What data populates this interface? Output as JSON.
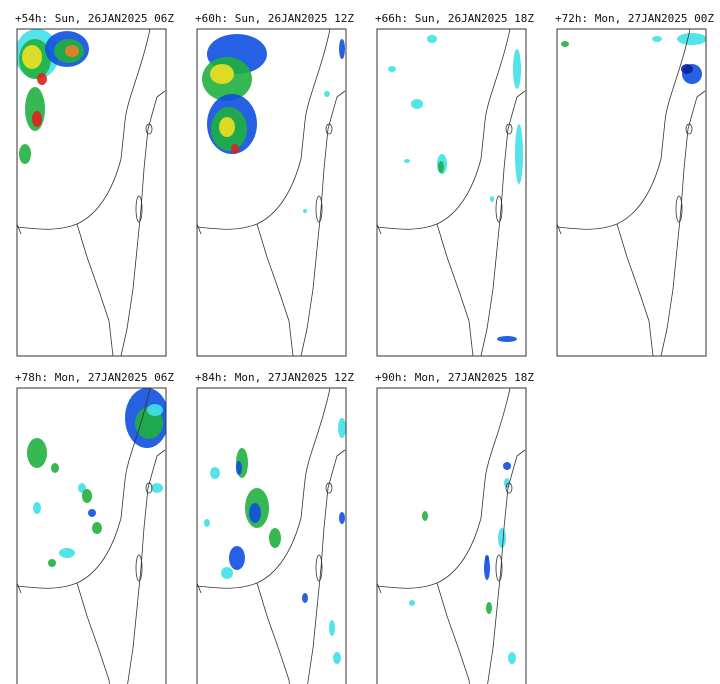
{
  "panels": [
    {
      "title": "+54h: Sun, 26JAN2025 06Z"
    },
    {
      "title": "+60h: Sun, 26JAN2025 12Z"
    },
    {
      "title": "+66h: Sun, 26JAN2025 18Z"
    },
    {
      "title": "+72h: Mon, 27JAN2025 00Z"
    },
    {
      "title": "+78h: Mon, 27JAN2025 06Z"
    },
    {
      "title": "+84h: Mon, 27JAN2025 12Z"
    },
    {
      "title": "+90h: Mon, 27JAN2025 18Z"
    }
  ]
}
